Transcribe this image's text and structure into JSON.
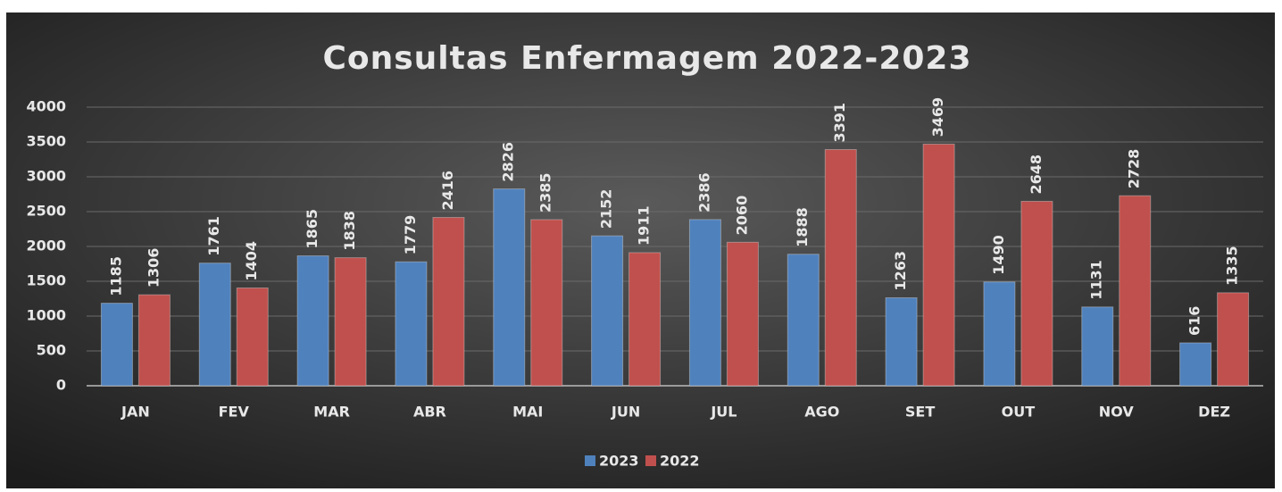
{
  "chart_data": {
    "type": "bar",
    "title": "Consultas Enfermagem 2022-2023",
    "categories": [
      "JAN",
      "FEV",
      "MAR",
      "ABR",
      "MAI",
      "JUN",
      "JUL",
      "AGO",
      "SET",
      "OUT",
      "NOV",
      "DEZ"
    ],
    "series": [
      {
        "name": "2023",
        "color": "#4f81bd",
        "values": [
          1185,
          1761,
          1865,
          1779,
          2826,
          2152,
          2386,
          1888,
          1263,
          1490,
          1131,
          616
        ]
      },
      {
        "name": "2022",
        "color": "#c0504d",
        "values": [
          1306,
          1404,
          1838,
          2416,
          2385,
          1911,
          2060,
          3391,
          3469,
          2648,
          2728,
          1335
        ]
      }
    ],
    "ylim": [
      0,
      4000
    ],
    "yticks": [
      0,
      500,
      1000,
      1500,
      2000,
      2500,
      3000,
      3500,
      4000
    ],
    "grid": true,
    "legend": "bottom"
  }
}
